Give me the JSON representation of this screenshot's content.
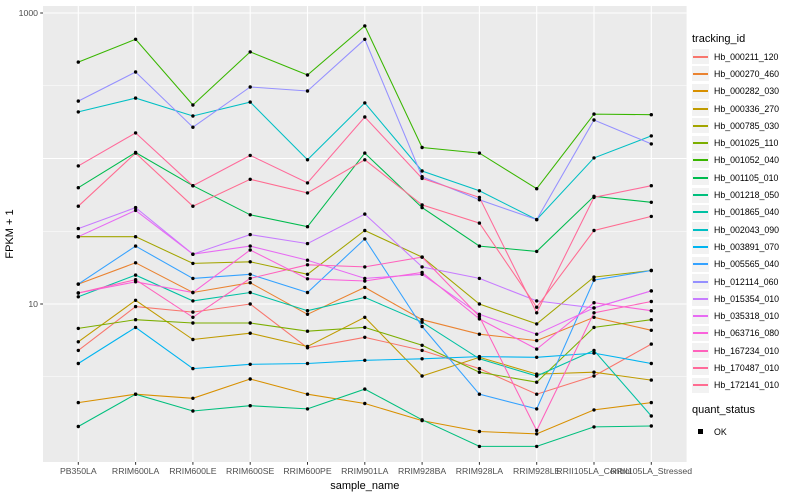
{
  "chart_data": {
    "type": "line",
    "title": "",
    "xlabel": "sample_name",
    "ylabel": "FPKM + 1",
    "y_scale": "log10",
    "y_tick_labels": [
      "1000",
      "10"
    ],
    "y_ticks": [
      1000,
      10
    ],
    "y_major_gridlines": [
      10,
      100,
      1000
    ],
    "y_minor_gridlines": [
      3.162,
      31.62,
      316.2
    ],
    "ylim": [
      0.82,
      1117
    ],
    "grid": true,
    "legend_position": "right",
    "legend_title": "tracking_id",
    "quant_status": {
      "title": "quant_status",
      "value": "OK"
    },
    "panel_bg": "#EBEBEB",
    "gridline_color": "#FFFFFF",
    "tick_color": "#333333",
    "tick_label_color": "#4D4D4D",
    "point_color": "#000000",
    "categories": [
      "PB350LA",
      "RRIM600LA",
      "RRIM600LE",
      "RRIM600SE",
      "RRIM600PE",
      "RRIM901LA",
      "RRIM928BA",
      "RRIM928LA",
      "RRIM928LE",
      "RRII105LA_Control",
      "RRII105LA_Stressed"
    ],
    "series": [
      {
        "name": "Hb_000211_120",
        "color": "#F8766D",
        "values": [
          4.8,
          9.6,
          8.8,
          10,
          5.0,
          5.9,
          4.8,
          3.6,
          2.4,
          3.2,
          5.3
        ]
      },
      {
        "name": "Hb_000270_460",
        "color": "#EA8331",
        "values": [
          13.7,
          19.2,
          12,
          14,
          8.5,
          13,
          7.8,
          6.2,
          5.6,
          8.1,
          6.6
        ]
      },
      {
        "name": "Hb_000282_030",
        "color": "#D89000",
        "values": [
          2.1,
          2.4,
          2.25,
          3.05,
          2.4,
          2.07,
          1.58,
          1.33,
          1.28,
          1.87,
          2.1
        ]
      },
      {
        "name": "Hb_000336_270",
        "color": "#C09B00",
        "values": [
          5.5,
          10.6,
          5.7,
          6.3,
          5.1,
          8.1,
          3.2,
          4.3,
          3.3,
          3.4,
          3.0
        ]
      },
      {
        "name": "Hb_000785_030",
        "color": "#A3A500",
        "values": [
          29,
          29,
          19,
          19.5,
          16,
          32,
          21,
          10,
          7.3,
          15.3,
          17
        ]
      },
      {
        "name": "Hb_001025_110",
        "color": "#7CAE00",
        "values": [
          6.8,
          7.8,
          7.4,
          7.4,
          6.5,
          6.9,
          5.2,
          3.4,
          2.9,
          6.9,
          7.8
        ]
      },
      {
        "name": "Hb_001052_040",
        "color": "#39B600",
        "values": [
          460,
          660,
          233,
          540,
          375,
          815,
          119,
          109,
          62,
          202,
          200
        ]
      },
      {
        "name": "Hb_001105_010",
        "color": "#00BB4E",
        "values": [
          63,
          110,
          65,
          41,
          34,
          109,
          46,
          25,
          23,
          55,
          50
        ]
      },
      {
        "name": "Hb_001218_050",
        "color": "#00BF7D",
        "values": [
          1.44,
          2.4,
          1.84,
          2.0,
          1.9,
          2.6,
          1.6,
          1.05,
          1.05,
          1.43,
          1.45
        ]
      },
      {
        "name": "Hb_001865_040",
        "color": "#00C1A3",
        "values": [
          11.2,
          15.8,
          10.5,
          12,
          9.0,
          11.1,
          7.5,
          4.2,
          3.2,
          4.8,
          1.7
        ]
      },
      {
        "name": "Hb_002043_090",
        "color": "#00BFC4",
        "values": [
          209,
          260,
          196,
          244,
          98,
          241,
          82,
          60,
          38,
          101,
          143
        ]
      },
      {
        "name": "Hb_003891_070",
        "color": "#00B4F0",
        "values": [
          3.9,
          6.9,
          3.6,
          3.85,
          3.9,
          4.1,
          4.2,
          4.35,
          4.3,
          4.6,
          3.9
        ]
      },
      {
        "name": "Hb_005565_040",
        "color": "#35A2FF",
        "values": [
          13.7,
          25,
          15,
          16,
          12,
          28,
          7.0,
          2.4,
          1.9,
          14.6,
          17
        ]
      },
      {
        "name": "Hb_012114_060",
        "color": "#9590FF",
        "values": [
          248,
          393,
          164,
          310,
          291,
          660,
          75,
          52,
          38,
          184,
          126
        ]
      },
      {
        "name": "Hb_015354_010",
        "color": "#C77CFF",
        "values": [
          33,
          46,
          22,
          30,
          26,
          41.5,
          18,
          15,
          10.5,
          9.4,
          12.3
        ]
      },
      {
        "name": "Hb_035318_010",
        "color": "#E76BF3",
        "values": [
          29,
          44,
          22,
          25,
          20,
          15,
          16,
          8.5,
          6.2,
          9.4,
          12.3
        ]
      },
      {
        "name": "Hb_063716_080",
        "color": "#FA62DB",
        "values": [
          11.9,
          14.2,
          12,
          23.5,
          14.9,
          14.4,
          16.5,
          7.9,
          4.9,
          10.2,
          9.0
        ]
      },
      {
        "name": "Hb_167234_010",
        "color": "#FF62BC",
        "values": [
          11.9,
          14.7,
          8.1,
          15,
          18.6,
          18,
          21,
          8.2,
          1.35,
          8.7,
          10.4
        ]
      },
      {
        "name": "Hb_170487_010",
        "color": "#FF6A9A",
        "values": [
          89,
          150,
          65,
          105,
          68,
          193,
          73,
          54,
          8.7,
          54,
          65
        ]
      },
      {
        "name": "Hb_172141_010",
        "color": "#FF6C91",
        "values": [
          47,
          109,
          47,
          72,
          58,
          98,
          48,
          36,
          9.5,
          32,
          40
        ]
      }
    ]
  }
}
